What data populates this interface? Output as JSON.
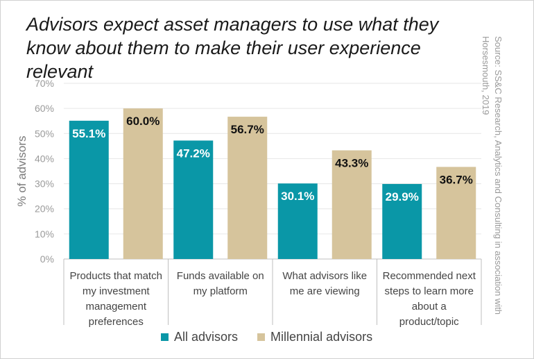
{
  "chart": {
    "title": "Advisors expect asset managers to use what they know about them to make their user experience relevant",
    "source": "Source: SS&C Research, Analytics and Consulting in association with Horsesmouth, 2019"
  },
  "colors": {
    "all_advisors": "#0a97a7",
    "millennial_advisors": "#d6c49c",
    "grid": "#e6e6e6",
    "axis_text": "#9a9a9a"
  },
  "chart_data": {
    "type": "bar",
    "title": "Advisors expect asset managers to use what they know about them to make their user experience relevant",
    "xlabel": "",
    "ylabel": "% of advisors",
    "ylim": [
      0,
      70
    ],
    "yticks": [
      "0%",
      "10%",
      "20%",
      "30%",
      "40%",
      "50%",
      "60%",
      "70%"
    ],
    "grid": true,
    "legend": "bottom",
    "categories": [
      "Products that match my investment management preferences",
      "Funds available on my platform",
      "What advisors like me are viewing",
      "Recommended next steps to learn more about a product/topic"
    ],
    "category_lines": [
      [
        "Products that match",
        "my investment",
        "management",
        "preferences"
      ],
      [
        "Funds available on",
        "my platform"
      ],
      [
        "What advisors like",
        "me are viewing"
      ],
      [
        "Recommended next",
        "steps to learn more",
        "about a",
        "product/topic"
      ]
    ],
    "series": [
      {
        "name": "All advisors",
        "values": [
          55.1,
          47.2,
          30.1,
          29.9
        ],
        "labels": [
          "55.1%",
          "47.2%",
          "30.1%",
          "29.9%"
        ]
      },
      {
        "name": "Millennial advisors",
        "values": [
          60.0,
          56.7,
          43.3,
          36.7
        ],
        "labels": [
          "60.0%",
          "56.7%",
          "43.3%",
          "36.7%"
        ]
      }
    ]
  }
}
